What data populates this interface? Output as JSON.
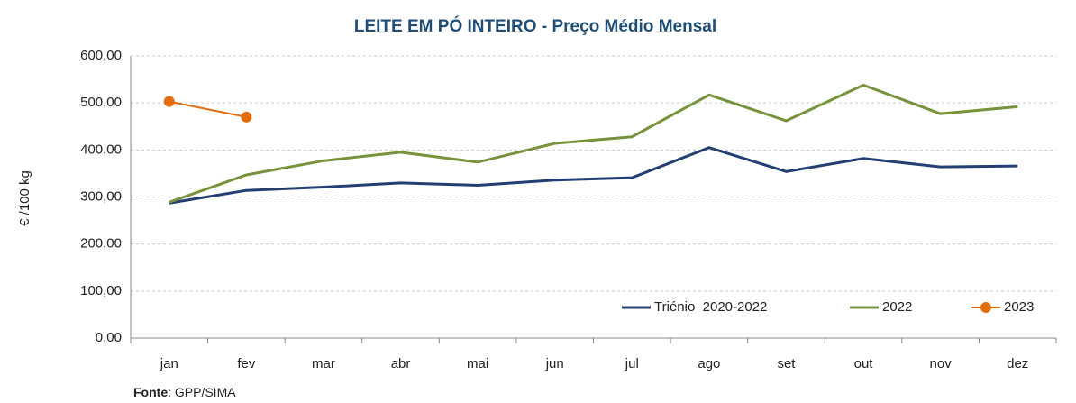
{
  "chart_data": {
    "type": "line",
    "title": "LEITE EM PÓ INTEIRO - Preço Médio Mensal",
    "y_label": "€ /100 kg",
    "source": {
      "label": "Fonte",
      "text": ": GPP/SIMA"
    },
    "categories": [
      "jan",
      "fev",
      "mar",
      "abr",
      "mai",
      "jun",
      "jul",
      "ago",
      "set",
      "out",
      "nov",
      "dez"
    ],
    "series": [
      {
        "name": "Triénio  2020-2022",
        "color": "#243f73",
        "marker": false,
        "values": [
          287,
          314,
          321,
          330,
          325,
          336,
          341,
          405,
          354,
          382,
          364,
          366
        ]
      },
      {
        "name": "2022",
        "color": "#77933c",
        "marker": false,
        "values": [
          289,
          347,
          377,
          395,
          374,
          414,
          428,
          517,
          462,
          538,
          477,
          492
        ]
      },
      {
        "name": "2023",
        "color": "#e46c0a",
        "marker": true,
        "values": [
          503,
          470,
          null,
          null,
          null,
          null,
          null,
          null,
          null,
          null,
          null,
          null
        ]
      }
    ],
    "ylim": [
      0,
      600
    ],
    "yticks": [
      {
        "value": 0,
        "label": "0,00"
      },
      {
        "value": 100,
        "label": "100,00"
      },
      {
        "value": 200,
        "label": "200,00"
      },
      {
        "value": 300,
        "label": "300,00"
      },
      {
        "value": 400,
        "label": "400,00"
      },
      {
        "value": 500,
        "label": "500,00"
      },
      {
        "value": 600,
        "label": "600,00"
      }
    ],
    "grid": true,
    "legend": "bottom-right"
  }
}
